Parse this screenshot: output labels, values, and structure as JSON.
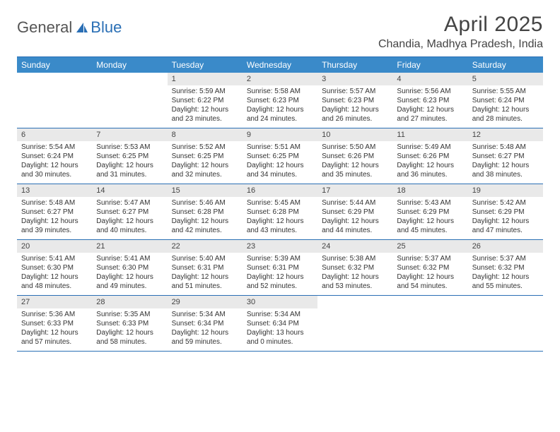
{
  "logo": {
    "text_general": "General",
    "text_blue": "Blue"
  },
  "title": {
    "month": "April 2025",
    "location": "Chandia, Madhya Pradesh, India"
  },
  "colors": {
    "header_bg": "#3a8ac9",
    "header_text": "#ffffff",
    "rule": "#2a6fb5",
    "daynum_bg": "#e9e9e9",
    "body_text": "#333333",
    "logo_accent": "#2a6fb5"
  },
  "day_names": [
    "Sunday",
    "Monday",
    "Tuesday",
    "Wednesday",
    "Thursday",
    "Friday",
    "Saturday"
  ],
  "weeks": [
    [
      null,
      null,
      {
        "n": "1",
        "sunrise": "5:59 AM",
        "sunset": "6:22 PM",
        "day_h": "12",
        "day_m": "23"
      },
      {
        "n": "2",
        "sunrise": "5:58 AM",
        "sunset": "6:23 PM",
        "day_h": "12",
        "day_m": "24"
      },
      {
        "n": "3",
        "sunrise": "5:57 AM",
        "sunset": "6:23 PM",
        "day_h": "12",
        "day_m": "26"
      },
      {
        "n": "4",
        "sunrise": "5:56 AM",
        "sunset": "6:23 PM",
        "day_h": "12",
        "day_m": "27"
      },
      {
        "n": "5",
        "sunrise": "5:55 AM",
        "sunset": "6:24 PM",
        "day_h": "12",
        "day_m": "28"
      }
    ],
    [
      {
        "n": "6",
        "sunrise": "5:54 AM",
        "sunset": "6:24 PM",
        "day_h": "12",
        "day_m": "30"
      },
      {
        "n": "7",
        "sunrise": "5:53 AM",
        "sunset": "6:25 PM",
        "day_h": "12",
        "day_m": "31"
      },
      {
        "n": "8",
        "sunrise": "5:52 AM",
        "sunset": "6:25 PM",
        "day_h": "12",
        "day_m": "32"
      },
      {
        "n": "9",
        "sunrise": "5:51 AM",
        "sunset": "6:25 PM",
        "day_h": "12",
        "day_m": "34"
      },
      {
        "n": "10",
        "sunrise": "5:50 AM",
        "sunset": "6:26 PM",
        "day_h": "12",
        "day_m": "35"
      },
      {
        "n": "11",
        "sunrise": "5:49 AM",
        "sunset": "6:26 PM",
        "day_h": "12",
        "day_m": "36"
      },
      {
        "n": "12",
        "sunrise": "5:48 AM",
        "sunset": "6:27 PM",
        "day_h": "12",
        "day_m": "38"
      }
    ],
    [
      {
        "n": "13",
        "sunrise": "5:48 AM",
        "sunset": "6:27 PM",
        "day_h": "12",
        "day_m": "39"
      },
      {
        "n": "14",
        "sunrise": "5:47 AM",
        "sunset": "6:27 PM",
        "day_h": "12",
        "day_m": "40"
      },
      {
        "n": "15",
        "sunrise": "5:46 AM",
        "sunset": "6:28 PM",
        "day_h": "12",
        "day_m": "42"
      },
      {
        "n": "16",
        "sunrise": "5:45 AM",
        "sunset": "6:28 PM",
        "day_h": "12",
        "day_m": "43"
      },
      {
        "n": "17",
        "sunrise": "5:44 AM",
        "sunset": "6:29 PM",
        "day_h": "12",
        "day_m": "44"
      },
      {
        "n": "18",
        "sunrise": "5:43 AM",
        "sunset": "6:29 PM",
        "day_h": "12",
        "day_m": "45"
      },
      {
        "n": "19",
        "sunrise": "5:42 AM",
        "sunset": "6:29 PM",
        "day_h": "12",
        "day_m": "47"
      }
    ],
    [
      {
        "n": "20",
        "sunrise": "5:41 AM",
        "sunset": "6:30 PM",
        "day_h": "12",
        "day_m": "48"
      },
      {
        "n": "21",
        "sunrise": "5:41 AM",
        "sunset": "6:30 PM",
        "day_h": "12",
        "day_m": "49"
      },
      {
        "n": "22",
        "sunrise": "5:40 AM",
        "sunset": "6:31 PM",
        "day_h": "12",
        "day_m": "51"
      },
      {
        "n": "23",
        "sunrise": "5:39 AM",
        "sunset": "6:31 PM",
        "day_h": "12",
        "day_m": "52"
      },
      {
        "n": "24",
        "sunrise": "5:38 AM",
        "sunset": "6:32 PM",
        "day_h": "12",
        "day_m": "53"
      },
      {
        "n": "25",
        "sunrise": "5:37 AM",
        "sunset": "6:32 PM",
        "day_h": "12",
        "day_m": "54"
      },
      {
        "n": "26",
        "sunrise": "5:37 AM",
        "sunset": "6:32 PM",
        "day_h": "12",
        "day_m": "55"
      }
    ],
    [
      {
        "n": "27",
        "sunrise": "5:36 AM",
        "sunset": "6:33 PM",
        "day_h": "12",
        "day_m": "57"
      },
      {
        "n": "28",
        "sunrise": "5:35 AM",
        "sunset": "6:33 PM",
        "day_h": "12",
        "day_m": "58"
      },
      {
        "n": "29",
        "sunrise": "5:34 AM",
        "sunset": "6:34 PM",
        "day_h": "12",
        "day_m": "59"
      },
      {
        "n": "30",
        "sunrise": "5:34 AM",
        "sunset": "6:34 PM",
        "day_h": "13",
        "day_m": "0"
      },
      null,
      null,
      null
    ]
  ],
  "labels": {
    "sunrise": "Sunrise:",
    "sunset": "Sunset:",
    "daylight_prefix": "Daylight:",
    "hours_word": "hours",
    "and_word": "and",
    "minutes_word": "minutes."
  }
}
